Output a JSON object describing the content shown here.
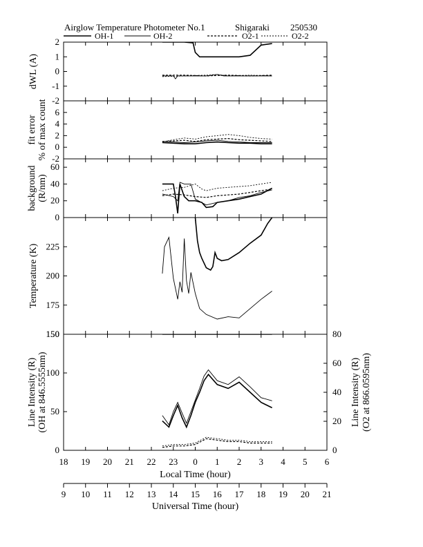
{
  "title": {
    "main": "Airglow Temperature Photometer No.1",
    "site": "Shigaraki",
    "date": "250530"
  },
  "legend": [
    "OH-1",
    "OH-2",
    "O2-1",
    "O2-2"
  ],
  "chart_data": [
    {
      "type": "line",
      "panel": "dwl",
      "ylabel": "dWL (A)",
      "ylim": [
        -2,
        2
      ],
      "yticks": [
        -1,
        0,
        1,
        2
      ],
      "series": [
        {
          "name": "OH-1",
          "x": [
            13.5,
            14.0,
            14.5,
            14.9,
            15.0,
            15.2,
            15.5,
            16.0,
            16.5,
            17.0,
            17.5,
            18.0,
            18.5
          ],
          "y": [
            2,
            2,
            2,
            1.95,
            1.3,
            1.0,
            1.0,
            1.0,
            1.0,
            1.0,
            1.1,
            1.8,
            1.9
          ]
        },
        {
          "name": "OH-2",
          "x": [
            13.5,
            14.0,
            14.1,
            14.2,
            14.5,
            15.0,
            15.5,
            16.0,
            16.3,
            16.6,
            17.0,
            17.5,
            18.0,
            18.5
          ],
          "y": [
            -0.3,
            -0.3,
            -0.5,
            -0.3,
            -0.3,
            -0.3,
            -0.3,
            -0.2,
            -0.3,
            -0.3,
            -0.3,
            -0.3,
            -0.3,
            -0.3
          ]
        },
        {
          "name": "O2-1",
          "x": [
            13.5,
            14.5,
            15.5,
            16.5,
            17.5,
            18.5
          ],
          "y": [
            -0.25,
            -0.25,
            -0.3,
            -0.25,
            -0.3,
            -0.25
          ]
        },
        {
          "name": "O2-2",
          "x": [
            13.5,
            14.5,
            15.5,
            16.0,
            16.5,
            17.5,
            18.5
          ],
          "y": [
            -0.35,
            -0.3,
            -0.25,
            -0.2,
            -0.3,
            -0.25,
            -0.3
          ]
        }
      ]
    },
    {
      "type": "line",
      "panel": "fit_error",
      "ylabel": "fit error",
      "ylabel2": "% of max count",
      "ylim": [
        -2,
        8
      ],
      "yticks": [
        0,
        2,
        4,
        6
      ],
      "series": [
        {
          "name": "OH-1",
          "x": [
            13.5,
            14.0,
            14.5,
            15.0,
            15.5,
            16.0,
            16.5,
            17.0,
            17.5,
            18.0,
            18.5
          ],
          "y": [
            0.8,
            0.7,
            0.6,
            0.6,
            0.8,
            0.9,
            0.8,
            0.7,
            0.7,
            0.6,
            0.6
          ]
        },
        {
          "name": "OH-2",
          "x": [
            13.5,
            14.0,
            14.5,
            15.0,
            15.5,
            16.0,
            16.5,
            17.0,
            17.5,
            18.0,
            18.5
          ],
          "y": [
            1.0,
            0.9,
            0.8,
            0.9,
            1.1,
            1.2,
            1.0,
            0.9,
            0.8,
            0.8,
            0.8
          ]
        },
        {
          "name": "O2-1",
          "x": [
            13.5,
            14.0,
            14.5,
            15.0,
            15.5,
            16.0,
            16.5,
            17.0,
            17.5,
            18.0,
            18.5
          ],
          "y": [
            1.0,
            1.1,
            1.2,
            1.0,
            1.3,
            1.4,
            1.5,
            1.3,
            1.2,
            1.1,
            1.0
          ]
        },
        {
          "name": "O2-2",
          "x": [
            13.5,
            14.0,
            14.5,
            15.0,
            15.5,
            16.0,
            16.5,
            17.0,
            17.5,
            18.0,
            18.5
          ],
          "y": [
            0.9,
            1.3,
            1.6,
            1.4,
            1.8,
            2.0,
            2.2,
            2.0,
            1.7,
            1.5,
            1.4
          ]
        }
      ]
    },
    {
      "type": "line",
      "panel": "background",
      "ylabel": "background",
      "ylabel2": "(R/nm)",
      "ylim": [
        0,
        70
      ],
      "yticks": [
        0,
        20,
        40,
        60
      ],
      "series": [
        {
          "name": "OH-1",
          "x": [
            13.5,
            14.0,
            14.1,
            14.2,
            14.3,
            14.5,
            14.7,
            15.0,
            15.3,
            15.5,
            15.8,
            16.0,
            16.5,
            17.0,
            17.5,
            18.0,
            18.5
          ],
          "y": [
            40,
            40,
            25,
            5,
            40,
            25,
            20,
            20,
            18,
            12,
            13,
            18,
            20,
            22,
            25,
            28,
            35
          ]
        },
        {
          "name": "OH-2",
          "x": [
            13.5,
            14.0,
            14.2,
            14.3,
            14.5,
            14.8,
            15.0,
            15.5,
            16.0,
            16.5,
            17.0,
            17.5,
            18.0,
            18.5
          ],
          "y": [
            28,
            25,
            20,
            42,
            40,
            40,
            22,
            15,
            18,
            20,
            24,
            26,
            30,
            33
          ]
        },
        {
          "name": "O2-1",
          "x": [
            13.5,
            14.0,
            14.5,
            15.0,
            15.5,
            16.0,
            16.5,
            17.0,
            17.5,
            18.0,
            18.5
          ],
          "y": [
            26,
            28,
            27,
            25,
            24,
            26,
            27,
            28,
            30,
            32,
            34
          ]
        },
        {
          "name": "O2-2",
          "x": [
            13.5,
            14.0,
            14.5,
            15.0,
            15.3,
            15.5,
            16.0,
            16.5,
            17.0,
            17.5,
            18.0,
            18.5
          ],
          "y": [
            32,
            35,
            36,
            40,
            34,
            32,
            35,
            36,
            37,
            38,
            40,
            42
          ]
        }
      ]
    },
    {
      "type": "line",
      "panel": "temperature",
      "ylabel": "Temperature (K)",
      "ylim": [
        150,
        250
      ],
      "yticks": [
        175,
        200,
        225
      ],
      "series": [
        {
          "name": "OH-1",
          "x": [
            15.0,
            15.1,
            15.2,
            15.3,
            15.5,
            15.7,
            15.8,
            15.9,
            16.0,
            16.2,
            16.5,
            17.0,
            17.5,
            18.0,
            18.3,
            18.5
          ],
          "y": [
            250,
            230,
            220,
            215,
            207,
            205,
            208,
            220,
            215,
            213,
            214,
            220,
            228,
            235,
            245,
            250
          ]
        },
        {
          "name": "OH-2",
          "x": [
            13.5,
            13.6,
            13.8,
            14.0,
            14.2,
            14.3,
            14.4,
            14.5,
            14.6,
            14.7,
            14.8,
            15.0,
            15.2,
            15.5,
            16.0,
            16.5,
            17.0,
            17.5,
            18.0,
            18.5
          ],
          "y": [
            202,
            225,
            233,
            198,
            180,
            195,
            186,
            232,
            196,
            185,
            203,
            185,
            172,
            167,
            163,
            165,
            164,
            172,
            180,
            187
          ]
        }
      ]
    },
    {
      "type": "line",
      "panel": "line_intensity",
      "ylabel": "Line Intensity (R)",
      "ylabel2": "(OH at 846.5555nm)",
      "y2label": "Line Intensity (R)",
      "y2label2": "(O2 at 866.0595nm)",
      "ylim": [
        0,
        150
      ],
      "yticks": [
        0,
        50,
        100,
        150
      ],
      "y2lim": [
        0,
        80
      ],
      "y2ticks": [
        0,
        20,
        40,
        60,
        80
      ],
      "series": [
        {
          "name": "OH-1",
          "axis": "left",
          "x": [
            13.5,
            13.8,
            14.0,
            14.2,
            14.4,
            14.6,
            14.8,
            15.0,
            15.2,
            15.4,
            15.6,
            16.0,
            16.5,
            17.0,
            17.5,
            18.0,
            18.5
          ],
          "y": [
            38,
            30,
            45,
            58,
            42,
            30,
            45,
            62,
            75,
            90,
            98,
            85,
            80,
            88,
            75,
            62,
            55
          ]
        },
        {
          "name": "OH-2",
          "axis": "left",
          "x": [
            13.5,
            13.8,
            14.0,
            14.2,
            14.4,
            14.6,
            14.8,
            15.0,
            15.2,
            15.4,
            15.6,
            16.0,
            16.5,
            17.0,
            17.5,
            18.0,
            18.5
          ],
          "y": [
            45,
            33,
            50,
            62,
            48,
            35,
            50,
            65,
            80,
            96,
            104,
            90,
            85,
            95,
            82,
            68,
            64
          ]
        },
        {
          "name": "O2-1",
          "axis": "right",
          "x": [
            13.5,
            14.0,
            14.5,
            15.0,
            15.5,
            16.0,
            16.5,
            17.0,
            17.5,
            18.0,
            18.5
          ],
          "y": [
            2,
            3,
            3,
            4,
            8,
            7,
            6,
            6,
            5,
            5,
            5
          ]
        },
        {
          "name": "O2-2",
          "axis": "right",
          "x": [
            13.5,
            14.0,
            14.5,
            15.0,
            15.5,
            16.0,
            16.5,
            17.0,
            17.5,
            18.0,
            18.5
          ],
          "y": [
            3,
            4,
            4,
            5,
            9,
            8,
            7,
            7,
            6,
            6,
            6
          ]
        },
        {
          "name": "OH-1",
          "axis": "left",
          "x": [
            13.5,
            18.5
          ],
          "y": [
            150,
            150
          ]
        }
      ]
    }
  ],
  "x_axis": {
    "label": "Local Time (hour)",
    "ticks": [
      "18",
      "19",
      "20",
      "21",
      "22",
      "23",
      "0",
      "1",
      "2",
      "3",
      "4",
      "5",
      "6"
    ],
    "xlim": [
      9,
      21
    ]
  },
  "x2_axis": {
    "label": "Universal Time (hour)",
    "ticks": [
      "9",
      "10",
      "11",
      "12",
      "13",
      "14",
      "15",
      "16",
      "17",
      "18",
      "19",
      "20",
      "21"
    ]
  }
}
